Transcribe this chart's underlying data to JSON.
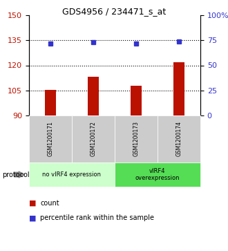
{
  "title": "GDS4956 / 234471_s_at",
  "samples": [
    "GSM1200171",
    "GSM1200172",
    "GSM1200173",
    "GSM1200174"
  ],
  "bar_values": [
    105.5,
    113,
    108,
    122
  ],
  "dot_values": [
    72,
    73,
    72,
    73.5
  ],
  "ylim_left": [
    90,
    150
  ],
  "ylim_right": [
    0,
    100
  ],
  "yticks_left": [
    90,
    105,
    120,
    135,
    150
  ],
  "yticks_right": [
    0,
    25,
    50,
    75,
    100
  ],
  "ytick_labels_right": [
    "0",
    "25",
    "50",
    "75",
    "100%"
  ],
  "bar_color": "#bb1100",
  "dot_color": "#3333cc",
  "bar_bottom": 90,
  "sample_box_color": "#cccccc",
  "group_configs": [
    {
      "indices": [
        0,
        1
      ],
      "label": "no vIRF4 expression",
      "color": "#ccffcc"
    },
    {
      "indices": [
        2,
        3
      ],
      "label": "vIRF4\noverexpression",
      "color": "#55dd55"
    }
  ],
  "legend_count_color": "#bb1100",
  "legend_dot_color": "#3333cc",
  "legend_count_label": "count",
  "legend_percentile_label": "percentile rank within the sample",
  "hgrid_values": [
    105,
    120,
    135
  ],
  "background_color": "#ffffff",
  "bar_width": 0.25
}
